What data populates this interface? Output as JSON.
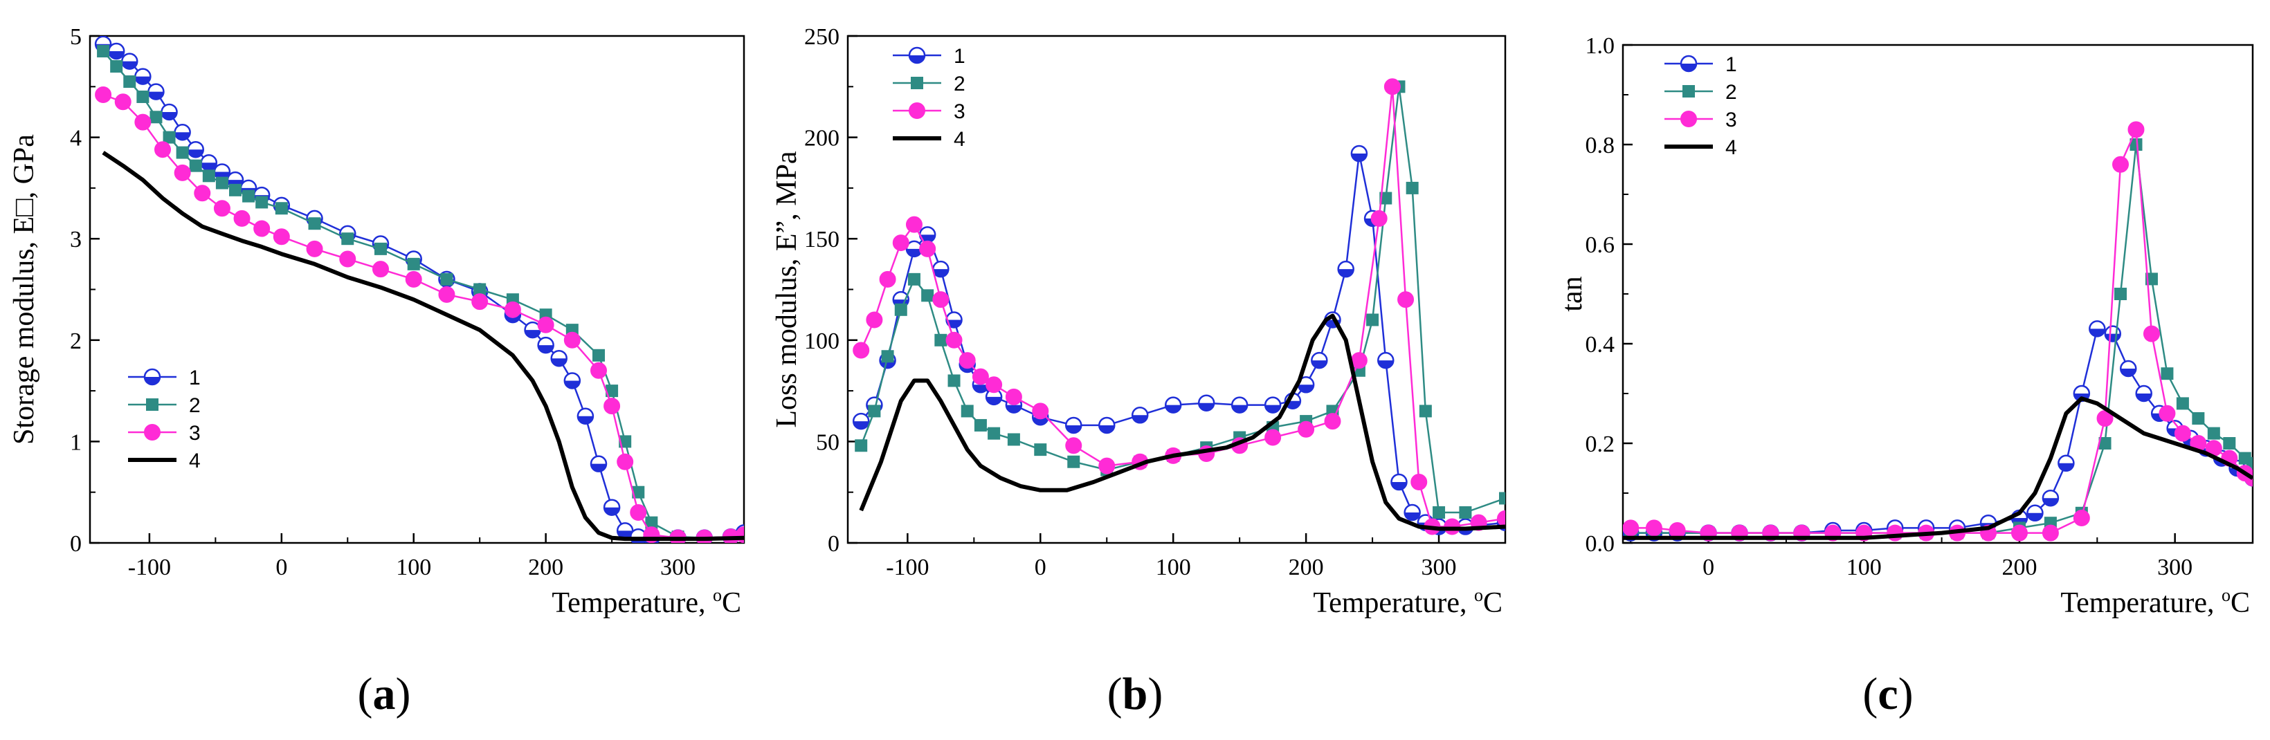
{
  "figure": {
    "panel_labels": [
      "(a)",
      "(b)",
      "(c)"
    ],
    "panel_letters": [
      "a",
      "b",
      "c"
    ]
  },
  "chart_data": [
    {
      "type": "line",
      "panel": "a",
      "title": "",
      "xlabel": "Temperature, oC",
      "xlabel_main": "Temperature, ",
      "xlabel_unit_sup": "o",
      "xlabel_unit": "C",
      "ylabel": "Storage modulus, E□, GPa",
      "xlim": [
        -145,
        350
      ],
      "ylim": [
        0,
        5
      ],
      "xticks": [
        -100,
        0,
        100,
        200,
        300
      ],
      "xtick_labels": [
        "-100",
        "0",
        "100",
        "200",
        "300"
      ],
      "yticks": [
        0,
        1,
        2,
        3,
        4,
        5
      ],
      "ytick_labels": [
        "0",
        "1",
        "2",
        "3",
        "4",
        "5"
      ],
      "legend_position": "lower-left",
      "series": [
        {
          "name": "1",
          "color": "#1f2fd8",
          "marker": "half-circle",
          "x": [
            -135,
            -125,
            -115,
            -105,
            -95,
            -85,
            -75,
            -65,
            -55,
            -45,
            -35,
            -25,
            -15,
            0,
            25,
            50,
            75,
            100,
            125,
            150,
            175,
            190,
            200,
            210,
            220,
            230,
            240,
            250,
            260,
            270,
            280,
            300,
            320,
            340,
            350
          ],
          "y": [
            4.92,
            4.85,
            4.75,
            4.6,
            4.45,
            4.25,
            4.05,
            3.88,
            3.75,
            3.66,
            3.58,
            3.5,
            3.43,
            3.33,
            3.2,
            3.05,
            2.95,
            2.8,
            2.6,
            2.48,
            2.25,
            2.1,
            1.95,
            1.82,
            1.6,
            1.25,
            0.78,
            0.35,
            0.12,
            0.06,
            0.05,
            0.05,
            0.05,
            0.06,
            0.1
          ]
        },
        {
          "name": "2",
          "color": "#2e8b84",
          "marker": "square",
          "x": [
            -135,
            -125,
            -115,
            -105,
            -95,
            -85,
            -75,
            -65,
            -55,
            -45,
            -35,
            -25,
            -15,
            0,
            25,
            50,
            75,
            100,
            125,
            150,
            175,
            200,
            220,
            240,
            250,
            260,
            270,
            280,
            300,
            320,
            340,
            350
          ],
          "y": [
            4.85,
            4.7,
            4.55,
            4.4,
            4.2,
            4.0,
            3.85,
            3.72,
            3.62,
            3.55,
            3.48,
            3.42,
            3.36,
            3.3,
            3.15,
            3.0,
            2.9,
            2.75,
            2.6,
            2.5,
            2.4,
            2.25,
            2.1,
            1.85,
            1.5,
            1.0,
            0.5,
            0.2,
            0.06,
            0.05,
            0.06,
            0.08
          ]
        },
        {
          "name": "3",
          "color": "#ff2bd6",
          "marker": "circle",
          "x": [
            -135,
            -120,
            -105,
            -90,
            -75,
            -60,
            -45,
            -30,
            -15,
            0,
            25,
            50,
            75,
            100,
            125,
            150,
            175,
            200,
            220,
            240,
            250,
            260,
            270,
            280,
            300,
            320,
            340,
            350
          ],
          "y": [
            4.42,
            4.35,
            4.15,
            3.88,
            3.65,
            3.45,
            3.3,
            3.2,
            3.1,
            3.02,
            2.9,
            2.8,
            2.7,
            2.6,
            2.45,
            2.38,
            2.3,
            2.15,
            2.0,
            1.7,
            1.35,
            0.8,
            0.3,
            0.08,
            0.05,
            0.05,
            0.06,
            0.08
          ]
        },
        {
          "name": "4",
          "color": "#000000",
          "marker": "none",
          "x": [
            -135,
            -120,
            -105,
            -90,
            -75,
            -60,
            -45,
            -30,
            -15,
            0,
            25,
            50,
            75,
            100,
            125,
            150,
            175,
            190,
            200,
            210,
            220,
            230,
            240,
            250,
            260,
            280,
            300,
            320,
            350
          ],
          "y": [
            3.85,
            3.72,
            3.58,
            3.4,
            3.25,
            3.12,
            3.05,
            2.98,
            2.92,
            2.85,
            2.75,
            2.62,
            2.52,
            2.4,
            2.25,
            2.1,
            1.85,
            1.6,
            1.35,
            1.0,
            0.55,
            0.25,
            0.1,
            0.05,
            0.04,
            0.04,
            0.04,
            0.04,
            0.05
          ]
        }
      ]
    },
    {
      "type": "line",
      "panel": "b",
      "title": "",
      "xlabel": "Temperature, oC",
      "xlabel_main": "Temperature, ",
      "xlabel_unit_sup": "o",
      "xlabel_unit": "C",
      "ylabel": "Loss modulus, E”, MPa",
      "xlim": [
        -145,
        350
      ],
      "ylim": [
        0,
        250
      ],
      "xticks": [
        -100,
        0,
        100,
        200,
        300
      ],
      "xtick_labels": [
        "-100",
        "0",
        "100",
        "200",
        "300"
      ],
      "yticks": [
        0,
        50,
        100,
        150,
        200,
        250
      ],
      "ytick_labels": [
        "0",
        "50",
        "100",
        "150",
        "200",
        "250"
      ],
      "legend_position": "top-left",
      "series": [
        {
          "name": "1",
          "color": "#1f2fd8",
          "marker": "half-circle",
          "x": [
            -135,
            -125,
            -115,
            -105,
            -95,
            -85,
            -75,
            -65,
            -55,
            -45,
            -35,
            -20,
            0,
            25,
            50,
            75,
            100,
            125,
            150,
            175,
            190,
            200,
            210,
            220,
            230,
            240,
            250,
            260,
            270,
            280,
            290,
            300,
            320,
            350
          ],
          "y": [
            60,
            68,
            90,
            120,
            145,
            152,
            135,
            110,
            88,
            78,
            72,
            68,
            62,
            58,
            58,
            63,
            68,
            69,
            68,
            68,
            70,
            78,
            90,
            110,
            135,
            192,
            160,
            90,
            30,
            15,
            10,
            8,
            8,
            10
          ]
        },
        {
          "name": "2",
          "color": "#2e8b84",
          "marker": "square",
          "x": [
            -135,
            -125,
            -115,
            -105,
            -95,
            -85,
            -75,
            -65,
            -55,
            -45,
            -35,
            -20,
            0,
            25,
            50,
            75,
            100,
            125,
            150,
            175,
            200,
            220,
            240,
            250,
            260,
            270,
            280,
            290,
            300,
            320,
            350
          ],
          "y": [
            48,
            65,
            92,
            115,
            130,
            122,
            100,
            80,
            65,
            58,
            54,
            51,
            46,
            40,
            36,
            40,
            43,
            47,
            52,
            57,
            60,
            65,
            85,
            110,
            170,
            225,
            175,
            65,
            15,
            15,
            22
          ]
        },
        {
          "name": "3",
          "color": "#ff2bd6",
          "marker": "circle",
          "x": [
            -135,
            -125,
            -115,
            -105,
            -95,
            -85,
            -75,
            -65,
            -55,
            -45,
            -35,
            -20,
            0,
            25,
            50,
            75,
            100,
            125,
            150,
            175,
            200,
            220,
            240,
            255,
            265,
            275,
            285,
            295,
            310,
            330,
            350
          ],
          "y": [
            95,
            110,
            130,
            148,
            157,
            145,
            120,
            100,
            90,
            82,
            78,
            72,
            65,
            48,
            38,
            40,
            43,
            44,
            48,
            52,
            56,
            60,
            90,
            160,
            225,
            120,
            30,
            8,
            8,
            10,
            12
          ]
        },
        {
          "name": "4",
          "color": "#000000",
          "marker": "none",
          "x": [
            -135,
            -120,
            -105,
            -95,
            -85,
            -75,
            -65,
            -55,
            -45,
            -30,
            -15,
            0,
            20,
            40,
            60,
            80,
            100,
            120,
            140,
            160,
            180,
            195,
            205,
            215,
            220,
            230,
            240,
            250,
            260,
            270,
            285,
            300,
            320,
            350
          ],
          "y": [
            16,
            40,
            70,
            80,
            80,
            70,
            58,
            46,
            38,
            32,
            28,
            26,
            26,
            30,
            35,
            40,
            43,
            45,
            47,
            52,
            62,
            80,
            100,
            110,
            112,
            100,
            70,
            40,
            20,
            12,
            8,
            7,
            7,
            8
          ]
        }
      ]
    },
    {
      "type": "line",
      "panel": "c",
      "title": "",
      "xlabel": "Temperature, oC",
      "xlabel_main": "Temperature, ",
      "xlabel_unit_sup": "o",
      "xlabel_unit": "C",
      "ylabel": "tan",
      "xlim": [
        -55,
        350
      ],
      "ylim": [
        0,
        1.0
      ],
      "xticks": [
        0,
        100,
        200,
        300
      ],
      "xtick_labels": [
        "0",
        "100",
        "200",
        "300"
      ],
      "yticks": [
        0,
        0.2,
        0.4,
        0.6,
        0.8,
        1.0
      ],
      "ytick_labels": [
        "0.0",
        "0.2",
        "0.4",
        "0.6",
        "0.8",
        "1.0"
      ],
      "legend_position": "top-left",
      "series": [
        {
          "name": "1",
          "color": "#1f2fd8",
          "marker": "half-circle",
          "x": [
            -50,
            -35,
            -20,
            0,
            20,
            40,
            60,
            80,
            100,
            120,
            140,
            160,
            180,
            200,
            210,
            220,
            230,
            240,
            250,
            260,
            270,
            280,
            290,
            300,
            310,
            320,
            330,
            340,
            350
          ],
          "y": [
            0.02,
            0.02,
            0.02,
            0.02,
            0.02,
            0.02,
            0.02,
            0.025,
            0.025,
            0.03,
            0.03,
            0.03,
            0.04,
            0.05,
            0.06,
            0.09,
            0.16,
            0.3,
            0.43,
            0.42,
            0.35,
            0.3,
            0.26,
            0.23,
            0.21,
            0.19,
            0.17,
            0.15,
            0.13
          ]
        },
        {
          "name": "2",
          "color": "#2e8b84",
          "marker": "square",
          "x": [
            -50,
            -35,
            -20,
            0,
            20,
            40,
            60,
            80,
            100,
            120,
            140,
            160,
            180,
            200,
            220,
            240,
            255,
            265,
            275,
            285,
            295,
            305,
            315,
            325,
            335,
            345,
            350
          ],
          "y": [
            0.02,
            0.02,
            0.02,
            0.02,
            0.02,
            0.02,
            0.02,
            0.02,
            0.02,
            0.02,
            0.02,
            0.02,
            0.02,
            0.03,
            0.04,
            0.06,
            0.2,
            0.5,
            0.8,
            0.53,
            0.34,
            0.28,
            0.25,
            0.22,
            0.2,
            0.17,
            0.16
          ]
        },
        {
          "name": "3",
          "color": "#ff2bd6",
          "marker": "circle",
          "x": [
            -50,
            -35,
            -20,
            0,
            20,
            40,
            60,
            80,
            100,
            120,
            140,
            160,
            180,
            200,
            220,
            240,
            255,
            265,
            275,
            285,
            295,
            305,
            315,
            325,
            335,
            345,
            350
          ],
          "y": [
            0.03,
            0.03,
            0.025,
            0.02,
            0.02,
            0.02,
            0.02,
            0.02,
            0.02,
            0.02,
            0.02,
            0.02,
            0.02,
            0.02,
            0.02,
            0.05,
            0.25,
            0.76,
            0.83,
            0.42,
            0.26,
            0.22,
            0.2,
            0.19,
            0.17,
            0.14,
            0.13
          ]
        },
        {
          "name": "4",
          "color": "#000000",
          "marker": "none",
          "x": [
            -55,
            -20,
            0,
            50,
            100,
            150,
            180,
            200,
            210,
            220,
            230,
            240,
            250,
            260,
            270,
            280,
            300,
            320,
            340,
            350
          ],
          "y": [
            0.01,
            0.01,
            0.01,
            0.01,
            0.01,
            0.02,
            0.03,
            0.06,
            0.1,
            0.17,
            0.26,
            0.29,
            0.28,
            0.26,
            0.24,
            0.22,
            0.2,
            0.18,
            0.15,
            0.13
          ]
        }
      ]
    }
  ]
}
